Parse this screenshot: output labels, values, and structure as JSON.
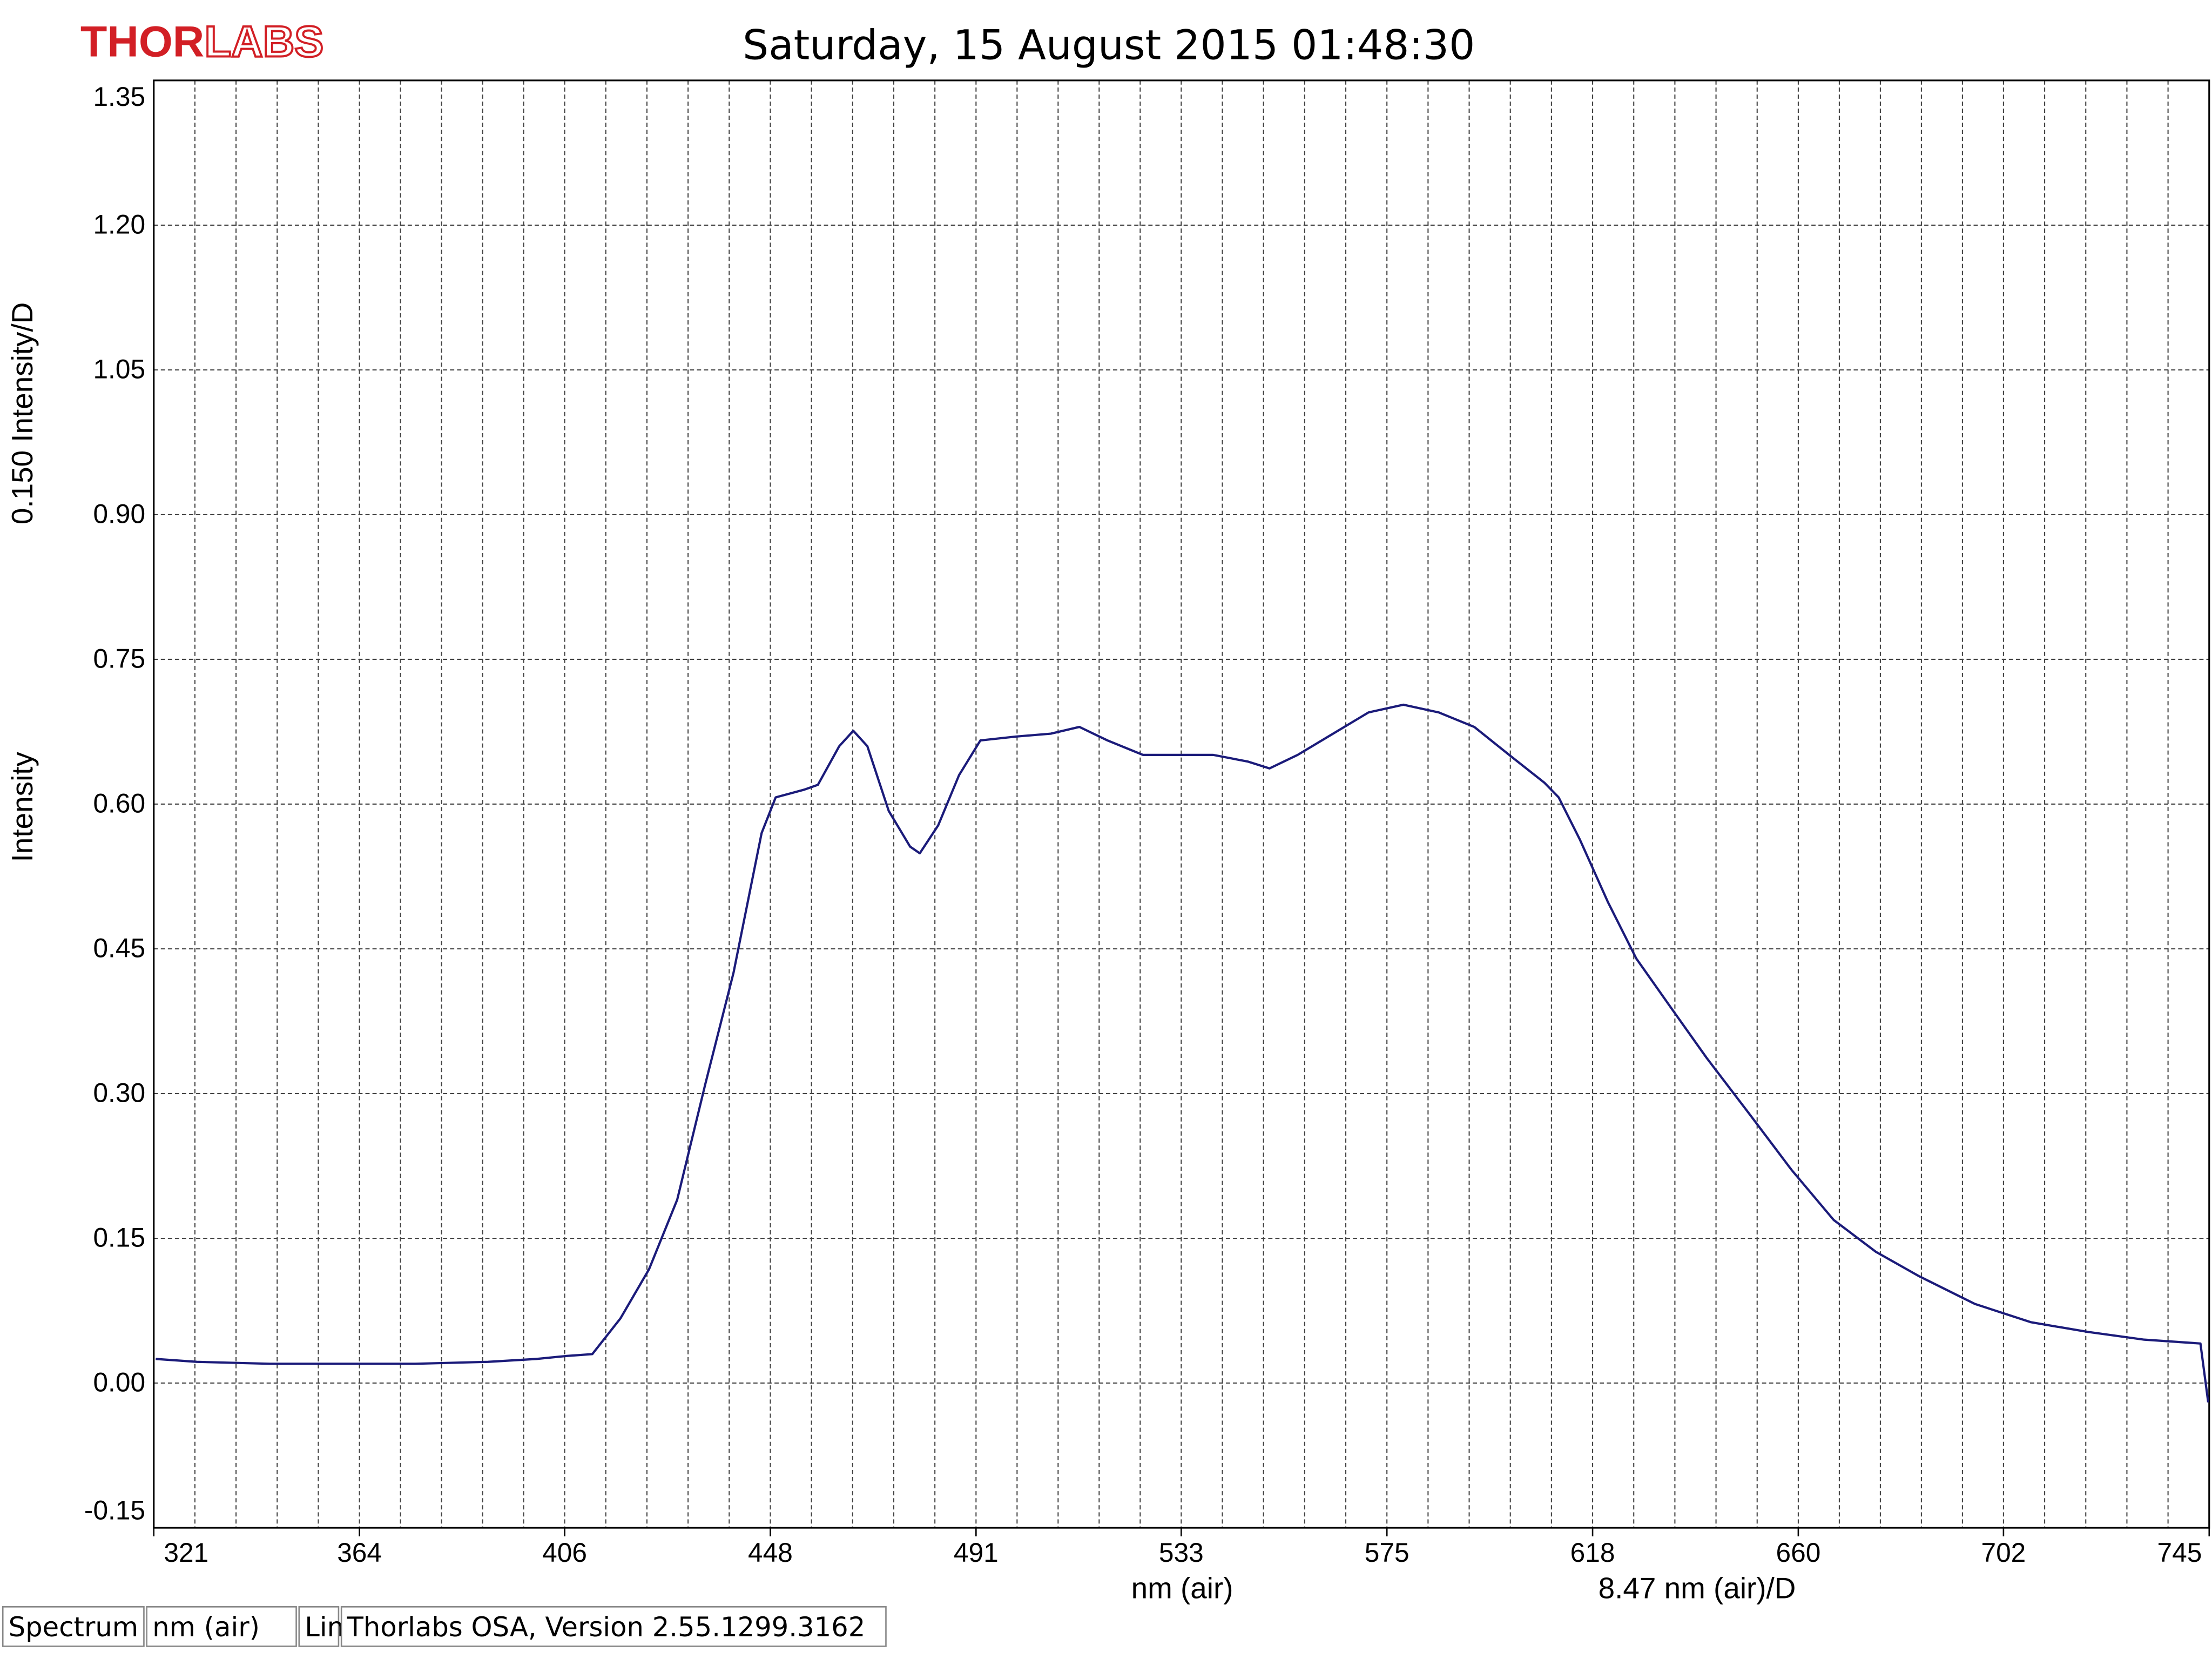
{
  "logo": {
    "bold": "THOR",
    "outline": "LABS"
  },
  "status_bar": [
    "Spectrum",
    "nm (air)",
    "Lin",
    "Thorlabs OSA, Version 2.55.1299.3162"
  ],
  "chart_data": {
    "type": "line",
    "title": "Saturday, 15 August 2015 01:48:30",
    "y_label_top": "0.150 Intensity/D",
    "y_label": "Intensity",
    "x_label": "nm (air)",
    "x_scale_label": "8.47 nm (air)/D",
    "xlim": [
      321.1,
      744.8
    ],
    "ylim": [
      -0.15,
      1.35
    ],
    "xticks": [
      {
        "value": 321.1,
        "label": "321"
      },
      {
        "value": 363.5,
        "label": "364"
      },
      {
        "value": 405.8,
        "label": "406"
      },
      {
        "value": 448.2,
        "label": "448"
      },
      {
        "value": 490.6,
        "label": "491"
      },
      {
        "value": 532.9,
        "label": "533"
      },
      {
        "value": 575.3,
        "label": "575"
      },
      {
        "value": 617.7,
        "label": "618"
      },
      {
        "value": 660.1,
        "label": "660"
      },
      {
        "value": 702.4,
        "label": "702"
      },
      {
        "value": 744.8,
        "label": "745"
      }
    ],
    "yticks": [
      -0.15,
      {
        "value": 0,
        "label": "0.00"
      },
      0.15,
      {
        "value": 0.3,
        "label": "0.30"
      },
      0.45,
      {
        "value": 0.6,
        "label": "0.60"
      },
      0.75,
      {
        "value": 0.9,
        "label": "0.90"
      },
      1.05,
      {
        "value": 1.2,
        "label": "1.20"
      },
      1.35
    ],
    "grid": true,
    "x": [
      321.5,
      330,
      345,
      360,
      375,
      390,
      400,
      406,
      411.5,
      417.3,
      423.2,
      429,
      434.8,
      440.6,
      446.4,
      449.3,
      455.2,
      458,
      462.4,
      465.3,
      468.2,
      472.6,
      477,
      479,
      482.8,
      487.1,
      491.5,
      498.8,
      506,
      511.9,
      517.7,
      525,
      532.2,
      539.5,
      546.7,
      551.1,
      556.9,
      564.2,
      571.5,
      578.7,
      586,
      593.3,
      600.5,
      607.8,
      610.7,
      615.1,
      620.9,
      626.7,
      634,
      641.2,
      650,
      658.7,
      667.4,
      676.1,
      684.9,
      696.5,
      708.1,
      719.8,
      731.4,
      743,
      744.6
    ],
    "series": [
      {
        "name": "Spectrum",
        "color": "#1b1b7a",
        "values": [
          0.025,
          0.022,
          0.02,
          0.02,
          0.02,
          0.022,
          0.025,
          0.028,
          0.03,
          0.067,
          0.118,
          0.19,
          0.31,
          0.425,
          0.57,
          0.607,
          0.615,
          0.62,
          0.66,
          0.676,
          0.66,
          0.593,
          0.556,
          0.549,
          0.578,
          0.63,
          0.666,
          0.67,
          0.673,
          0.68,
          0.666,
          0.651,
          0.651,
          0.651,
          0.644,
          0.637,
          0.651,
          0.673,
          0.695,
          0.703,
          0.695,
          0.68,
          0.651,
          0.622,
          0.607,
          0.563,
          0.498,
          0.44,
          0.388,
          0.337,
          0.279,
          0.221,
          0.169,
          0.136,
          0.111,
          0.082,
          0.063,
          0.053,
          0.045,
          0.041,
          -0.02
        ]
      }
    ]
  }
}
